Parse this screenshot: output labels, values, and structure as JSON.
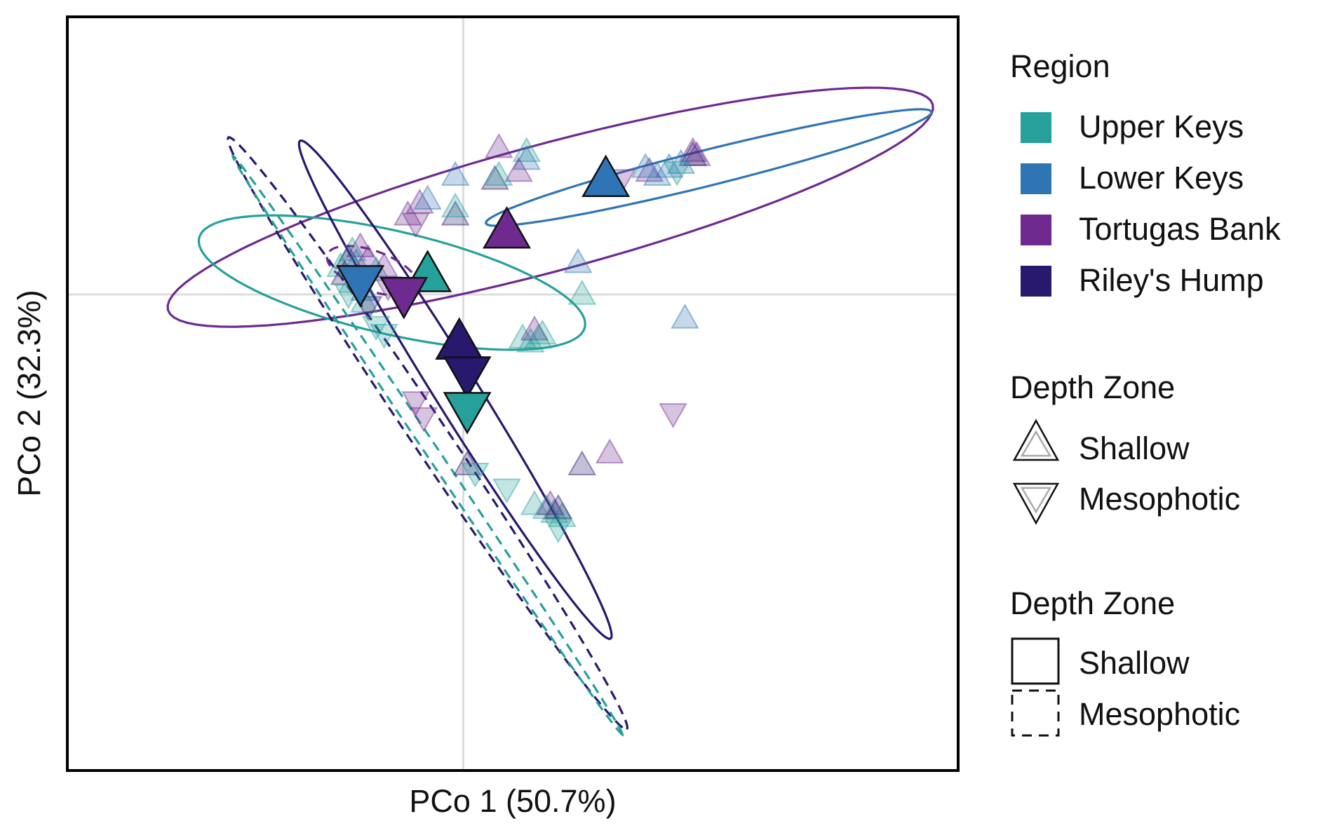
{
  "chart_data": {
    "type": "scatter",
    "xlabel": "PCo 1 (50.7%)",
    "ylabel": "PCo 2 (32.3%)",
    "xlim": [
      -1.0,
      1.25
    ],
    "ylim": [
      -1.2,
      0.7
    ],
    "zero_gridlines": true,
    "legend_position": "right",
    "colors": {
      "Upper Keys": "#26a09a",
      "Lower Keys": "#2f75b5",
      "Tortugas Bank": "#6e2a8f",
      "Riley's Hump": "#28186e"
    },
    "legends": {
      "region": {
        "title": "Region",
        "items": [
          "Upper Keys",
          "Lower Keys",
          "Tortugas Bank",
          "Riley's Hump"
        ]
      },
      "depth_shape": {
        "title": "Depth Zone",
        "items": [
          {
            "label": "Shallow",
            "shape": "triangle-up"
          },
          {
            "label": "Mesophotic",
            "shape": "triangle-down"
          }
        ]
      },
      "depth_line": {
        "title": "Depth Zone",
        "items": [
          {
            "label": "Shallow",
            "linetype": "solid"
          },
          {
            "label": "Mesophotic",
            "linetype": "dashed"
          }
        ]
      }
    },
    "centroids": [
      {
        "region": "Lower Keys",
        "depth": "Shallow",
        "x": 0.36,
        "y": 0.29
      },
      {
        "region": "Tortugas Bank",
        "depth": "Shallow",
        "x": 0.11,
        "y": 0.16
      },
      {
        "region": "Upper Keys",
        "depth": "Shallow",
        "x": -0.09,
        "y": 0.05
      },
      {
        "region": "Lower Keys",
        "depth": "Mesophotic",
        "x": -0.26,
        "y": 0.03
      },
      {
        "region": "Tortugas Bank",
        "depth": "Mesophotic",
        "x": -0.15,
        "y": 0.0
      },
      {
        "region": "Riley's Hump",
        "depth": "Shallow",
        "x": -0.01,
        "y": -0.12
      },
      {
        "region": "Riley's Hump",
        "depth": "Mesophotic",
        "x": 0.01,
        "y": -0.2
      },
      {
        "region": "Upper Keys",
        "depth": "Mesophotic",
        "x": 0.01,
        "y": -0.29
      }
    ],
    "points": [
      {
        "region": "Tortugas Bank",
        "depth": "Shallow",
        "x": 0.58,
        "y": 0.36
      },
      {
        "region": "Tortugas Bank",
        "depth": "Shallow",
        "x": 0.59,
        "y": 0.35
      },
      {
        "region": "Riley's Hump",
        "depth": "Shallow",
        "x": 0.58,
        "y": 0.35
      },
      {
        "region": "Lower Keys",
        "depth": "Shallow",
        "x": 0.55,
        "y": 0.33
      },
      {
        "region": "Lower Keys",
        "depth": "Shallow",
        "x": 0.52,
        "y": 0.32
      },
      {
        "region": "Tortugas Bank",
        "depth": "Shallow",
        "x": 0.47,
        "y": 0.31
      },
      {
        "region": "Lower Keys",
        "depth": "Shallow",
        "x": 0.46,
        "y": 0.32
      },
      {
        "region": "Lower Keys",
        "depth": "Shallow",
        "x": 0.49,
        "y": 0.3
      },
      {
        "region": "Upper Keys",
        "depth": "Mesophotic",
        "x": 0.54,
        "y": 0.31
      },
      {
        "region": "Tortugas Bank",
        "depth": "Mesophotic",
        "x": 0.4,
        "y": 0.29
      },
      {
        "region": "Tortugas Bank",
        "depth": "Shallow",
        "x": 0.09,
        "y": 0.37
      },
      {
        "region": "Upper Keys",
        "depth": "Shallow",
        "x": 0.16,
        "y": 0.36
      },
      {
        "region": "Lower Keys",
        "depth": "Shallow",
        "x": 0.16,
        "y": 0.34
      },
      {
        "region": "Tortugas Bank",
        "depth": "Shallow",
        "x": 0.14,
        "y": 0.31
      },
      {
        "region": "Lower Keys",
        "depth": "Shallow",
        "x": -0.02,
        "y": 0.3
      },
      {
        "region": "Riley's Hump",
        "depth": "Shallow",
        "x": 0.08,
        "y": 0.29
      },
      {
        "region": "Upper Keys",
        "depth": "Shallow",
        "x": 0.09,
        "y": 0.3
      },
      {
        "region": "Tortugas Bank",
        "depth": "Shallow",
        "x": -0.11,
        "y": 0.23
      },
      {
        "region": "Lower Keys",
        "depth": "Shallow",
        "x": -0.09,
        "y": 0.24
      },
      {
        "region": "Riley's Hump",
        "depth": "Shallow",
        "x": -0.02,
        "y": 0.2
      },
      {
        "region": "Upper Keys",
        "depth": "Shallow",
        "x": -0.02,
        "y": 0.22
      },
      {
        "region": "Tortugas Bank",
        "depth": "Shallow",
        "x": -0.14,
        "y": 0.2
      },
      {
        "region": "Tortugas Bank",
        "depth": "Mesophotic",
        "x": -0.12,
        "y": 0.18
      },
      {
        "region": "Lower Keys",
        "depth": "Shallow",
        "x": 0.29,
        "y": 0.08
      },
      {
        "region": "Upper Keys",
        "depth": "Shallow",
        "x": 0.3,
        "y": 0.0
      },
      {
        "region": "Lower Keys",
        "depth": "Shallow",
        "x": 0.56,
        "y": -0.06
      },
      {
        "region": "Upper Keys",
        "depth": "Shallow",
        "x": -0.28,
        "y": 0.11
      },
      {
        "region": "Tortugas Bank",
        "depth": "Shallow",
        "x": -0.26,
        "y": 0.12
      },
      {
        "region": "Riley's Hump",
        "depth": "Shallow",
        "x": -0.29,
        "y": 0.09
      },
      {
        "region": "Upper Keys",
        "depth": "Shallow",
        "x": -0.31,
        "y": 0.07
      },
      {
        "region": "Lower Keys",
        "depth": "Shallow",
        "x": -0.27,
        "y": 0.08
      },
      {
        "region": "Tortugas Bank",
        "depth": "Shallow",
        "x": -0.24,
        "y": 0.09
      },
      {
        "region": "Upper Keys",
        "depth": "Shallow",
        "x": -0.22,
        "y": 0.06
      },
      {
        "region": "Riley's Hump",
        "depth": "Shallow",
        "x": -0.3,
        "y": 0.05
      },
      {
        "region": "Upper Keys",
        "depth": "Shallow",
        "x": -0.28,
        "y": 0.03
      },
      {
        "region": "Tortugas Bank",
        "depth": "Shallow",
        "x": -0.2,
        "y": 0.07
      },
      {
        "region": "Lower Keys",
        "depth": "Shallow",
        "x": -0.25,
        "y": 0.01
      },
      {
        "region": "Upper Keys",
        "depth": "Mesophotic",
        "x": -0.29,
        "y": 0.0
      },
      {
        "region": "Tortugas Bank",
        "depth": "Mesophotic",
        "x": -0.19,
        "y": 0.02
      },
      {
        "region": "Upper Keys",
        "depth": "Shallow",
        "x": -0.25,
        "y": -0.02
      },
      {
        "region": "Riley's Hump",
        "depth": "Mesophotic",
        "x": -0.24,
        "y": -0.03
      },
      {
        "region": "Upper Keys",
        "depth": "Mesophotic",
        "x": -0.22,
        "y": -0.08
      },
      {
        "region": "Upper Keys",
        "depth": "Mesophotic",
        "x": -0.2,
        "y": -0.1
      },
      {
        "region": "Upper Keys",
        "depth": "Shallow",
        "x": 0.15,
        "y": -0.11
      },
      {
        "region": "Upper Keys",
        "depth": "Shallow",
        "x": 0.17,
        "y": -0.12
      },
      {
        "region": "Upper Keys",
        "depth": "Shallow",
        "x": 0.19,
        "y": -0.11
      },
      {
        "region": "Tortugas Bank",
        "depth": "Shallow",
        "x": 0.18,
        "y": -0.09
      },
      {
        "region": "Upper Keys",
        "depth": "Shallow",
        "x": 0.2,
        "y": -0.1
      },
      {
        "region": "Tortugas Bank",
        "depth": "Mesophotic",
        "x": -0.12,
        "y": -0.27
      },
      {
        "region": "Tortugas Bank",
        "depth": "Mesophotic",
        "x": -0.1,
        "y": -0.31
      },
      {
        "region": "Tortugas Bank",
        "depth": "Mesophotic",
        "x": 0.53,
        "y": -0.3
      },
      {
        "region": "Tortugas Bank",
        "depth": "Shallow",
        "x": 0.37,
        "y": -0.4
      },
      {
        "region": "Riley's Hump",
        "depth": "Shallow",
        "x": 0.3,
        "y": -0.43
      },
      {
        "region": "Riley's Hump",
        "depth": "Shallow",
        "x": 0.01,
        "y": -0.43
      },
      {
        "region": "Upper Keys",
        "depth": "Mesophotic",
        "x": 0.03,
        "y": -0.45
      },
      {
        "region": "Upper Keys",
        "depth": "Mesophotic",
        "x": 0.11,
        "y": -0.49
      },
      {
        "region": "Upper Keys",
        "depth": "Shallow",
        "x": 0.18,
        "y": -0.53
      },
      {
        "region": "Upper Keys",
        "depth": "Shallow",
        "x": 0.21,
        "y": -0.54
      },
      {
        "region": "Upper Keys",
        "depth": "Shallow",
        "x": 0.23,
        "y": -0.55
      },
      {
        "region": "Tortugas Bank",
        "depth": "Shallow",
        "x": 0.22,
        "y": -0.53
      },
      {
        "region": "Upper Keys",
        "depth": "Shallow",
        "x": 0.25,
        "y": -0.56
      },
      {
        "region": "Riley's Hump",
        "depth": "Shallow",
        "x": 0.24,
        "y": -0.54
      },
      {
        "region": "Upper Keys",
        "depth": "Mesophotic",
        "x": 0.24,
        "y": -0.59
      }
    ],
    "ellipses": [
      {
        "region": "Tortugas Bank",
        "depth": "Shallow",
        "cx": 0.22,
        "cy": 0.22,
        "rx": 1.0,
        "ry": 0.16,
        "angle_deg": 15
      },
      {
        "region": "Lower Keys",
        "depth": "Shallow",
        "cx": 0.62,
        "cy": 0.32,
        "rx": 0.58,
        "ry": 0.045,
        "angle_deg": 14
      },
      {
        "region": "Upper Keys",
        "depth": "Shallow",
        "cx": -0.18,
        "cy": 0.03,
        "rx": 0.5,
        "ry": 0.13,
        "angle_deg": -13
      },
      {
        "region": "Riley's Hump",
        "depth": "Shallow",
        "cx": -0.02,
        "cy": -0.24,
        "rx": 0.74,
        "ry": 0.055,
        "angle_deg": -58
      },
      {
        "region": "Riley's Hump",
        "depth": "Mesophotic",
        "cx": -0.09,
        "cy": -0.35,
        "rx": 0.9,
        "ry": 0.045,
        "angle_deg": -56
      },
      {
        "region": "Upper Keys",
        "depth": "Mesophotic",
        "cx": -0.09,
        "cy": -0.38,
        "rx": 0.88,
        "ry": 0.016,
        "angle_deg": -56
      },
      {
        "region": "Tortugas Bank",
        "depth": "Mesophotic",
        "cx": -0.23,
        "cy": 0.06,
        "rx": 0.12,
        "ry": 0.05,
        "angle_deg": -20
      }
    ]
  }
}
